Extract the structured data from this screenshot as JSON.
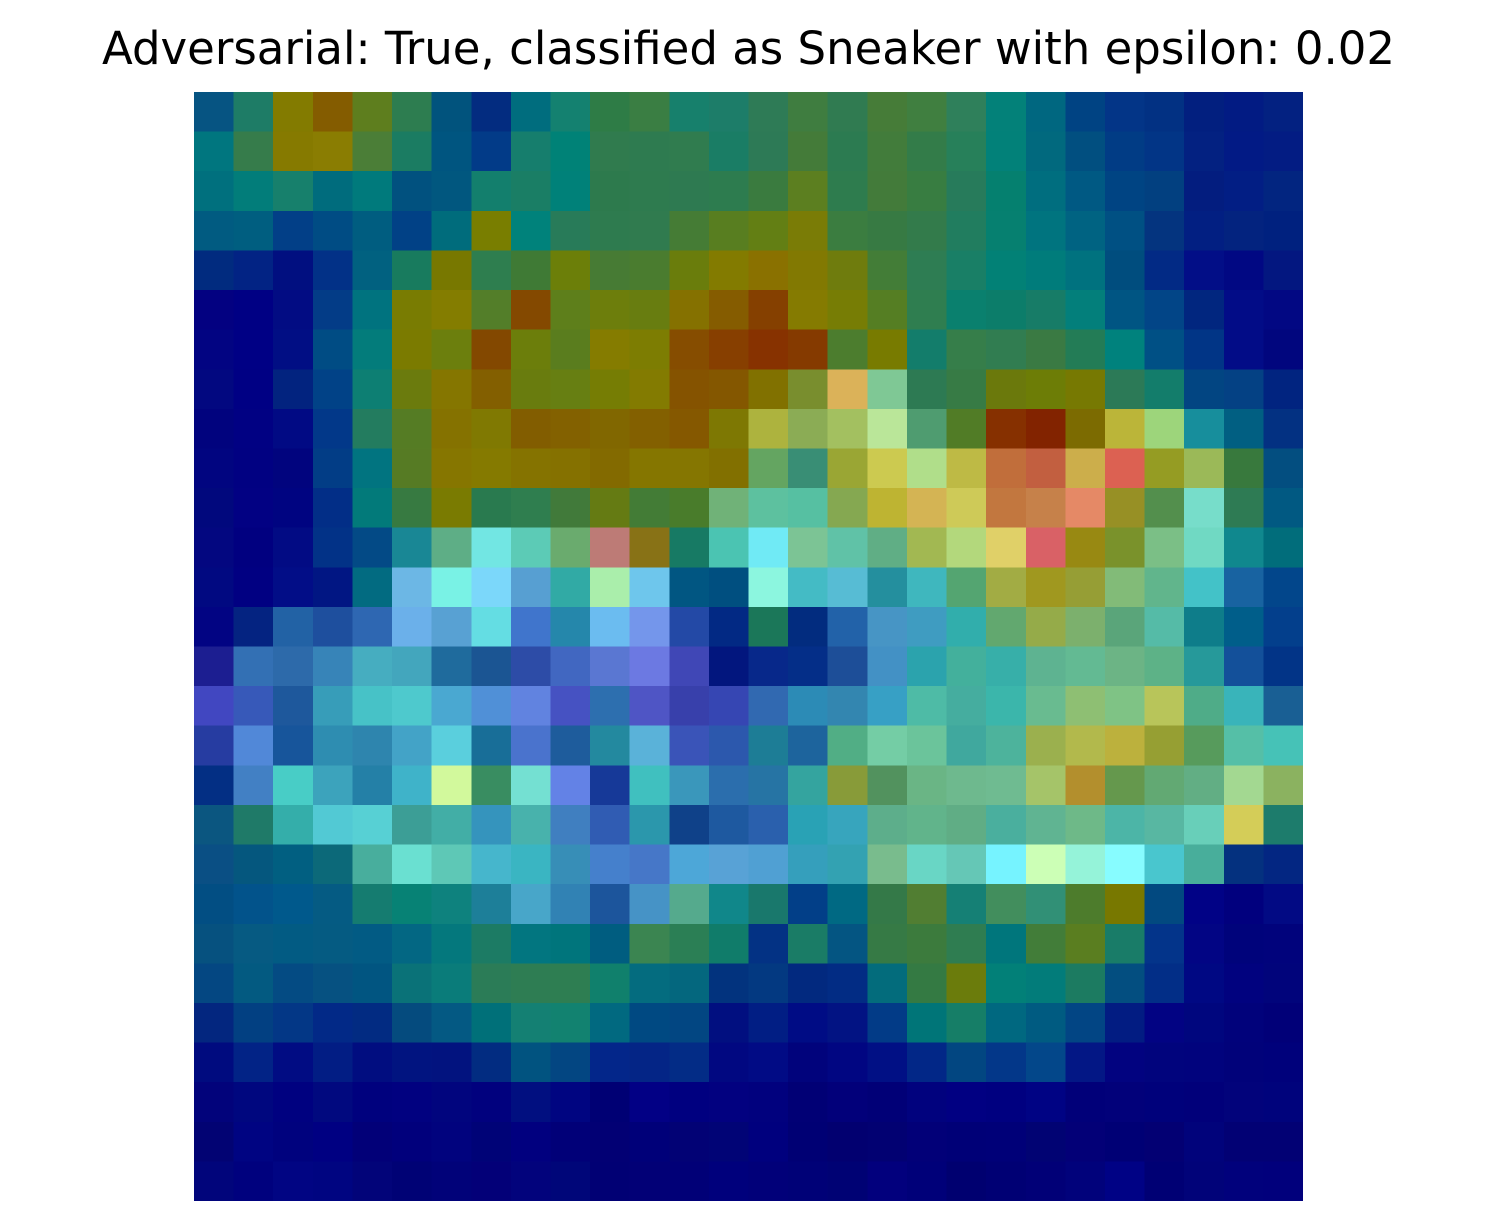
{
  "chart_data": {
    "type": "heatmap",
    "title": "Adversarial: True, classified as Sneaker with epsilon: 0.02",
    "axes_visible": false,
    "grid": false,
    "rows": 28,
    "cols": 28,
    "colormap": "jet-blended",
    "cells": [
      [
        "#065482",
        "#1e7c66",
        "#837b00",
        "#845c00",
        "#5e7e1e",
        "#2d7d50",
        "#01537d",
        "#032c80",
        "#006d7e",
        "#148170",
        "#2e7c46",
        "#3a7e43",
        "#17806c",
        "#1d7d69",
        "#2e7b56",
        "#3f7d40",
        "#307b51",
        "#467c38",
        "#407f40",
        "#2f805b",
        "#038179",
        "#006780",
        "#004383",
        "#033587",
        "#023183",
        "#021f7f",
        "#021b83",
        "#032181"
      ],
      [
        "#00767f",
        "#367c4b",
        "#867a00",
        "#8a7d02",
        "#4b7e37",
        "#1b7c62",
        "#005580",
        "#023b88",
        "#167e6d",
        "#008277",
        "#307b4e",
        "#2e7b50",
        "#307c4f",
        "#1a7d65",
        "#2d7a56",
        "#447b39",
        "#2c7b51",
        "#427c3b",
        "#337c49",
        "#27805a",
        "#028179",
        "#01697e",
        "#014f80",
        "#013c85",
        "#023586",
        "#032181",
        "#021a85",
        "#031c83"
      ],
      [
        "#00707e",
        "#027d7a",
        "#17806c",
        "#006c7d",
        "#007a7c",
        "#01517f",
        "#01577f",
        "#137f6d",
        "#1a7e65",
        "#008179",
        "#2d7a4d",
        "#2e7b4f",
        "#2e7a51",
        "#2d7c4f",
        "#3a7b3f",
        "#5c7f20",
        "#2e7c4e",
        "#437b3a",
        "#387d41",
        "#277b5b",
        "#05806f",
        "#006e7f",
        "#005983",
        "#004483",
        "#024080",
        "#031d7f",
        "#021e84",
        "#022580"
      ],
      [
        "#015b81",
        "#005e80",
        "#023f87",
        "#004c84",
        "#005d80",
        "#014186",
        "#006c7c",
        "#797e00",
        "#00827b",
        "#287b59",
        "#2e7b4f",
        "#307b4f",
        "#457c35",
        "#587e20",
        "#637f14",
        "#7a7c06",
        "#3b7d40",
        "#377a43",
        "#337b4b",
        "#217d5f",
        "#068070",
        "#00747f",
        "#006382",
        "#005083",
        "#04347f",
        "#021f82",
        "#03237f",
        "#00217f"
      ],
      [
        "#012b7f",
        "#022384",
        "#010f80",
        "#023187",
        "#016180",
        "#187b5e",
        "#787800",
        "#2e7e4f",
        "#3f7a35",
        "#6c7f09",
        "#477b34",
        "#4a7c2f",
        "#6a7d0c",
        "#837b00",
        "#8a7100",
        "#827902",
        "#6f7c0d",
        "#437d37",
        "#2e7d53",
        "#197f66",
        "#028176",
        "#007c7b",
        "#00727f",
        "#004d7e",
        "#022a85",
        "#020e87",
        "#010883",
        "#031780"
      ],
      [
        "#030181",
        "#000084",
        "#020c83",
        "#033c87",
        "#00737f",
        "#797c02",
        "#847d00",
        "#537e29",
        "#844900",
        "#5e7f1b",
        "#6d7e0c",
        "#687d10",
        "#857100",
        "#855c00",
        "#854000",
        "#857b01",
        "#777d05",
        "#557e23",
        "#2f7e50",
        "#0a806e",
        "#0c7d6a",
        "#177c67",
        "#037f7b",
        "#005583",
        "#024587",
        "#01267f",
        "#020c87",
        "#020883"
      ],
      [
        "#020482",
        "#000085",
        "#010e84",
        "#004c84",
        "#037c7b",
        "#7b7b00",
        "#6c7f0d",
        "#834800",
        "#6c7e0b",
        "#5a7d1e",
        "#857c00",
        "#7d7d02",
        "#864d00",
        "#873f00",
        "#873200",
        "#853a00",
        "#4c7d2e",
        "#787b00",
        "#137d6b",
        "#367e4a",
        "#317d51",
        "#3a7a43",
        "#237c56",
        "#00827d",
        "#005085",
        "#013586",
        "#020c87",
        "#01067e"
      ],
      [
        "#020880",
        "#000084",
        "#02237f",
        "#014287",
        "#0d7f73",
        "#6b7b0d",
        "#857600",
        "#835f00",
        "#697c0e",
        "#677f12",
        "#767d04",
        "#837b01",
        "#855300",
        "#845700",
        "#817100",
        "#798e2e",
        "#dbb259",
        "#7fc895",
        "#2d7a53",
        "#377b45",
        "#6b790c",
        "#6d7d06",
        "#777902",
        "#2c7a57",
        "#137d6b",
        "#024582",
        "#044184",
        "#012480"
      ],
      [
        "#01037e",
        "#010183",
        "#010a84",
        "#023889",
        "#237c5f",
        "#557c24",
        "#857200",
        "#807902",
        "#825d00",
        "#836100",
        "#816700",
        "#836000",
        "#855800",
        "#7e7803",
        "#adb33e",
        "#8bac55",
        "#a3c060",
        "#bae699",
        "#4f9c70",
        "#517c26",
        "#863000",
        "#822300",
        "#7c6b01",
        "#bbb539",
        "#9dd57b",
        "#178e9c",
        "#015f82",
        "#033182"
      ],
      [
        "#010580",
        "#010182",
        "#01047e",
        "#023d86",
        "#017480",
        "#567b24",
        "#867600",
        "#857a00",
        "#857300",
        "#857100",
        "#836a00",
        "#857600",
        "#857601",
        "#827000",
        "#64a561",
        "#398e75",
        "#9aa634",
        "#ccca50",
        "#b0de8a",
        "#beba45",
        "#c16e3b",
        "#c25f40",
        "#ccae4b",
        "#dc6152",
        "#959c23",
        "#9bb958",
        "#38793d",
        "#034e80"
      ],
      [
        "#01087d",
        "#020183",
        "#000481",
        "#022e87",
        "#027a7a",
        "#377a41",
        "#7a7b01",
        "#297a4f",
        "#2f7e4f",
        "#417a3a",
        "#657b13",
        "#437c36",
        "#497c2b",
        "#70b278",
        "#5dc19f",
        "#56c0a2",
        "#85a851",
        "#beb432",
        "#d4b454",
        "#ceca58",
        "#c2773f",
        "#c6814a",
        "#e58966",
        "#979025",
        "#538f4d",
        "#77ddca",
        "#2e7b54",
        "#015982"
      ],
      [
        "#030780",
        "#010080",
        "#020b84",
        "#023287",
        "#034a86",
        "#198795",
        "#5eae86",
        "#72e6e3",
        "#5ccbb6",
        "#6aab6e",
        "#bd7b76",
        "#887216",
        "#177a64",
        "#4bc4b2",
        "#70eaf5",
        "#7cc495",
        "#60c2a7",
        "#60ae85",
        "#a2b852",
        "#b3d87c",
        "#e0d068",
        "#d96166",
        "#988912",
        "#7a922b",
        "#7bbf86",
        "#70d9c3",
        "#10888e",
        "#016d7b"
      ],
      [
        "#010981",
        "#010082",
        "#020d87",
        "#011683",
        "#026b81",
        "#6cb7e5",
        "#79f2e5",
        "#7bd7fa",
        "#579fd2",
        "#31aaa5",
        "#aaeeab",
        "#6ec6ec",
        "#015682",
        "#004f80",
        "#8cf6df",
        "#44bbc5",
        "#57bcd4",
        "#248f9e",
        "#3fb7be",
        "#54a571",
        "#a2ac44",
        "#a0981f",
        "#969e35",
        "#82bb78",
        "#61b58c",
        "#43c2c8",
        "#1863a1",
        "#02468b"
      ],
      [
        "#020483",
        "#042381",
        "#2262a5",
        "#1e4f9e",
        "#2e67b2",
        "#6bb0ea",
        "#58a1d3",
        "#64dde3",
        "#4075cc",
        "#2587ab",
        "#6bbcf0",
        "#7496eb",
        "#2349a6",
        "#022984",
        "#1b7759",
        "#022c7f",
        "#2262a9",
        "#4795c5",
        "#3f9cc1",
        "#31aeac",
        "#62a86f",
        "#95ab49",
        "#7cb06d",
        "#5aa57a",
        "#55bba7",
        "#0e7d8a",
        "#005e8a",
        "#033f8c"
      ],
      [
        "#1c1e91",
        "#3370b4",
        "#2d6aaa",
        "#3784b8",
        "#46adc0",
        "#43a6bd",
        "#1f6b9d",
        "#1b5593",
        "#2d4ca7",
        "#4167c1",
        "#5a77d2",
        "#6c79e2",
        "#4047b6",
        "#02167e",
        "#07288a",
        "#042e88",
        "#1d4e98",
        "#4391c5",
        "#2ba3ad",
        "#43b09c",
        "#37afa9",
        "#5eb391",
        "#63ba93",
        "#6cb485",
        "#5db287",
        "#26999a",
        "#13509a",
        "#023487"
      ],
      [
        "#4147c1",
        "#3759b9",
        "#1e589c",
        "#379db9",
        "#47c2c7",
        "#4ec9cd",
        "#4aa8d1",
        "#5090d7",
        "#6183e0",
        "#4652c2",
        "#2d6faf",
        "#4f55c5",
        "#3840ab",
        "#3646b3",
        "#3169b1",
        "#2c8bb6",
        "#3386b0",
        "#37a0c5",
        "#4ebba6",
        "#45ad9f",
        "#3bb6ab",
        "#69bb90",
        "#8ebf73",
        "#7fc385",
        "#b8c55a",
        "#4fac88",
        "#39b4ba",
        "#195f94"
      ],
      [
        "#263ca1",
        "#5188d8",
        "#17559b",
        "#2e8db1",
        "#2e85ae",
        "#43a3c7",
        "#5acfdd",
        "#186e98",
        "#4a73cd",
        "#1e5c9c",
        "#23899f",
        "#5ab2d9",
        "#3a54b8",
        "#2c58ad",
        "#1d7d96",
        "#1d649d",
        "#51ae85",
        "#74cda5",
        "#6bc49b",
        "#40a89e",
        "#4db39c",
        "#9bb04e",
        "#b2b94c",
        "#bcb13d",
        "#969f33",
        "#579b5c",
        "#55bfa7",
        "#46c2b7"
      ],
      [
        "#032f84",
        "#4280c4",
        "#48cdc6",
        "#3ca3bc",
        "#2480a7",
        "#3fb3c9",
        "#d2f99c",
        "#398d61",
        "#74e0d2",
        "#6382e6",
        "#163998",
        "#40c0bf",
        "#3a97bb",
        "#2b6ead",
        "#2674a4",
        "#34a49f",
        "#889b39",
        "#52925e",
        "#6ab585",
        "#6eb98e",
        "#6fbb91",
        "#a5c469",
        "#b38f2d",
        "#65984d",
        "#62a973",
        "#62ae84",
        "#a3d891",
        "#8bb260"
      ],
      [
        "#0b5680",
        "#1f7a68",
        "#34aeaa",
        "#52c9d4",
        "#57d0d4",
        "#3c9e96",
        "#42aea6",
        "#3594bd",
        "#48b2ac",
        "#407fc0",
        "#305cb3",
        "#2b97ac",
        "#0f4189",
        "#1e59a0",
        "#2a60ad",
        "#29a2b5",
        "#37a5bd",
        "#5dae8b",
        "#61b48b",
        "#60ad85",
        "#4aaf9e",
        "#60b492",
        "#6eb988",
        "#4cb5a7",
        "#58b7a2",
        "#68cfb9",
        "#d4cd58",
        "#1d7c6c"
      ],
      [
        "#0a4f84",
        "#05577e",
        "#015f81",
        "#0c6979",
        "#48ae9d",
        "#6ae0d1",
        "#5ec8b6",
        "#46b6cc",
        "#3ab5c2",
        "#378eb7",
        "#4580cc",
        "#4677c8",
        "#4da7d8",
        "#58a2d6",
        "#50a0d3",
        "#359fbc",
        "#33a2b2",
        "#79bc8d",
        "#69d6c5",
        "#65c7b6",
        "#76f3ff",
        "#ccffb6",
        "#95f3d9",
        "#87fcff",
        "#49c6ce",
        "#48ae9b",
        "#04317f",
        "#032682"
      ],
      [
        "#024e83",
        "#02538b",
        "#00598c",
        "#055b83",
        "#157c70",
        "#078275",
        "#0e827e",
        "#1d7f99",
        "#48a6c9",
        "#3182b4",
        "#1c559c",
        "#4693c6",
        "#55aa8d",
        "#10878a",
        "#19786c",
        "#023f88",
        "#006983",
        "#347948",
        "#517e32",
        "#158075",
        "#428e5d",
        "#319076",
        "#4d7c2c",
        "#787800",
        "#024980",
        "#010286",
        "#01007e",
        "#020a84"
      ],
      [
        "#06517f",
        "#065a82",
        "#025b83",
        "#055b82",
        "#025b84",
        "#036783",
        "#04787d",
        "#1c7b64",
        "#027680",
        "#00757c",
        "#005d80",
        "#3b8551",
        "#2b7f55",
        "#107c6a",
        "#033284",
        "#1a7c66",
        "#045582",
        "#367a45",
        "#3c7b3d",
        "#2f7d51",
        "#00767c",
        "#427d39",
        "#5a7e20",
        "#197c68",
        "#03348a",
        "#020584",
        "#00037b",
        "#01037c"
      ],
      [
        "#044782",
        "#035a81",
        "#044b83",
        "#065181",
        "#015581",
        "#0a7278",
        "#0a7c7a",
        "#2b7c57",
        "#2e7d53",
        "#2e7e52",
        "#10806c",
        "#046c7f",
        "#04677e",
        "#02337e",
        "#033981",
        "#02297f",
        "#022c84",
        "#036c7c",
        "#347a43",
        "#6b7c0c",
        "#028078",
        "#027c7a",
        "#1c7b61",
        "#034e80",
        "#022e87",
        "#000883",
        "#01027f",
        "#01047b"
      ],
      [
        "#03267f",
        "#024082",
        "#033786",
        "#022987",
        "#022b82",
        "#054b7e",
        "#045983",
        "#007079",
        "#148073",
        "#128270",
        "#016980",
        "#004982",
        "#024682",
        "#010f80",
        "#011e84",
        "#000c85",
        "#021383",
        "#023b87",
        "#007578",
        "#167e67",
        "#006880",
        "#005b81",
        "#024584",
        "#021c82",
        "#020383",
        "#00067e",
        "#01027b",
        "#010078"
      ],
      [
        "#000b7f",
        "#022386",
        "#010c83",
        "#021d84",
        "#010d80",
        "#011480",
        "#02137f",
        "#022c81",
        "#015380",
        "#034682",
        "#03268a",
        "#042586",
        "#032c86",
        "#010881",
        "#010b85",
        "#01037c",
        "#010682",
        "#011085",
        "#022787",
        "#024681",
        "#033789",
        "#03478a",
        "#031785",
        "#020380",
        "#01047d",
        "#01037d",
        "#01027a",
        "#00017b"
      ],
      [
        "#02037b",
        "#00077f",
        "#000180",
        "#01097f",
        "#00017e",
        "#010180",
        "#01057e",
        "#01017e",
        "#010f80",
        "#000581",
        "#000074",
        "#020085",
        "#000080",
        "#020180",
        "#01017e",
        "#010075",
        "#02007a",
        "#010077",
        "#01027e",
        "#010082",
        "#000080",
        "#000384",
        "#010079",
        "#02017a",
        "#00017b",
        "#01007a",
        "#02037b",
        "#00037c"
      ],
      [
        "#020373",
        "#000482",
        "#00027e",
        "#000082",
        "#020078",
        "#01007c",
        "#01037e",
        "#000377",
        "#01007f",
        "#010078",
        "#020074",
        "#000079",
        "#020275",
        "#010476",
        "#00007e",
        "#000074",
        "#020070",
        "#020172",
        "#020078",
        "#000077",
        "#000078",
        "#010373",
        "#030077",
        "#000075",
        "#030073",
        "#01037b",
        "#020174",
        "#020174"
      ],
      [
        "#01057b",
        "#00017e",
        "#010583",
        "#000581",
        "#020479",
        "#000275",
        "#010279",
        "#030078",
        "#02037c",
        "#000679",
        "#010074",
        "#020076",
        "#010077",
        "#00007c",
        "#010079",
        "#000177",
        "#000274",
        "#02007d",
        "#000079",
        "#000070",
        "#000074",
        "#010077",
        "#01027b",
        "#000285",
        "#000074",
        "#010379",
        "#01017c",
        "#01007c"
      ]
    ]
  }
}
